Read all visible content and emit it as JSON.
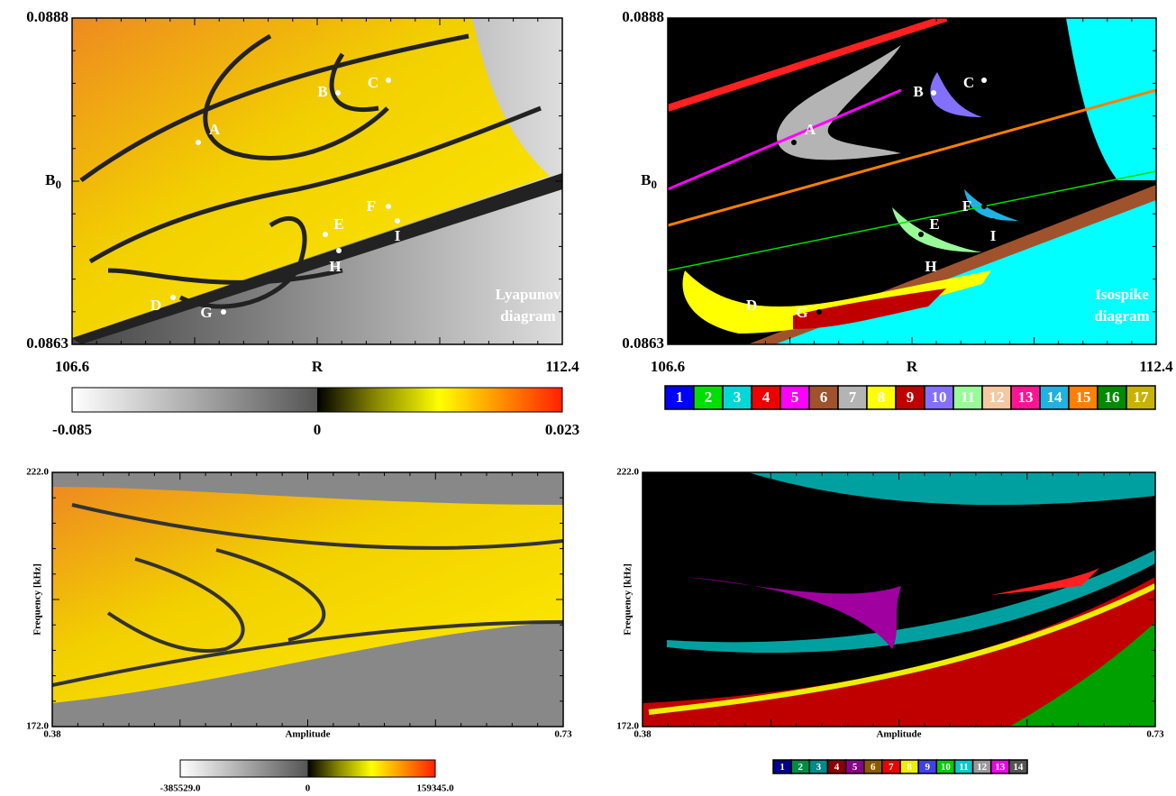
{
  "panels": [
    {
      "y_top": "0.0888",
      "y_bottom": "0.0863",
      "y_label": "B",
      "y_label_sub": "0",
      "x_left": "106.6",
      "x_mid": "R",
      "x_right": "112.4",
      "caption": [
        "Lyapunov",
        "diagram"
      ],
      "points": [
        "A",
        "B",
        "C",
        "D",
        "E",
        "F",
        "G",
        "H",
        "I"
      ]
    },
    {
      "y_top": "0.0888",
      "y_bottom": "0.0863",
      "y_label": "B",
      "y_label_sub": "0",
      "x_left": "106.6",
      "x_mid": "R",
      "x_right": "112.4",
      "caption": [
        "Isospike",
        "diagram"
      ],
      "points": [
        "A",
        "B",
        "C",
        "D",
        "E",
        "F",
        "G",
        "H",
        "I"
      ]
    },
    {
      "y_top": "222.0",
      "y_bottom": "172.0",
      "y_label": "Frequency [kHz]",
      "x_left": "0.38",
      "x_mid": "Amplitude",
      "x_right": "0.73"
    },
    {
      "y_top": "222.0",
      "y_bottom": "172.0",
      "y_label": "Frequency [kHz]",
      "x_left": "0.38",
      "x_mid": "Amplitude",
      "x_right": "0.73"
    }
  ],
  "colorbars": [
    {
      "min": "-0.085",
      "zero": "0",
      "max": "0.023"
    },
    {
      "min": "-385529.0",
      "zero": "0",
      "max": "159345.0"
    }
  ],
  "legends": [
    {
      "items": [
        {
          "label": "1",
          "color": "#0000ff"
        },
        {
          "label": "2",
          "color": "#00e000"
        },
        {
          "label": "3",
          "color": "#00d8d8"
        },
        {
          "label": "4",
          "color": "#ee0000"
        },
        {
          "label": "5",
          "color": "#ff00ff"
        },
        {
          "label": "6",
          "color": "#a0522d"
        },
        {
          "label": "7",
          "color": "#b4b4b4"
        },
        {
          "label": "8",
          "color": "#ffff00"
        },
        {
          "label": "9",
          "color": "#c00000"
        },
        {
          "label": "10",
          "color": "#8470ff"
        },
        {
          "label": "11",
          "color": "#98fb98"
        },
        {
          "label": "12",
          "color": "#f5c8a0"
        },
        {
          "label": "13",
          "color": "#ff1493"
        },
        {
          "label": "14",
          "color": "#20b2e0"
        },
        {
          "label": "15",
          "color": "#ff7f00"
        },
        {
          "label": "16",
          "color": "#008b00"
        },
        {
          "label": "17",
          "color": "#c8b400"
        }
      ]
    },
    {
      "items": [
        {
          "label": "1",
          "color": "#00008b"
        },
        {
          "label": "2",
          "color": "#008b45"
        },
        {
          "label": "3",
          "color": "#008b8b"
        },
        {
          "label": "4",
          "color": "#8b0000"
        },
        {
          "label": "5",
          "color": "#8b008b"
        },
        {
          "label": "6",
          "color": "#8b5a00"
        },
        {
          "label": "7",
          "color": "#ee0000"
        },
        {
          "label": "8",
          "color": "#eeee00"
        },
        {
          "label": "9",
          "color": "#4040ee"
        },
        {
          "label": "10",
          "color": "#00cc00"
        },
        {
          "label": "11",
          "color": "#00cccc"
        },
        {
          "label": "12",
          "color": "#999999"
        },
        {
          "label": "13",
          "color": "#ee00ee"
        },
        {
          "label": "14",
          "color": "#555555"
        }
      ]
    }
  ]
}
